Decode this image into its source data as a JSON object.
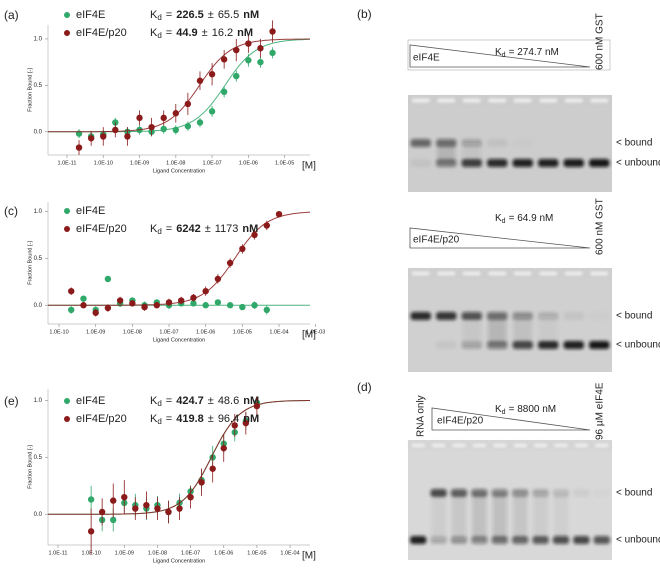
{
  "chart_data": [
    {
      "type": "scatter",
      "label": "(a)",
      "log_x": true,
      "grid": false,
      "x_label": "Ligand Concentration",
      "x_unit": "[M]",
      "y_label": "Fraction Bound [-]",
      "xlim": [
        3e-12,
        5e-05
      ],
      "ylim": [
        -0.25,
        1.15
      ],
      "xticks": [
        {
          "value": 1e-11,
          "label": "1.0E-11"
        },
        {
          "value": 1e-10,
          "label": "1.0E-10"
        },
        {
          "value": 1e-09,
          "label": "1.0E-09"
        },
        {
          "value": 1e-08,
          "label": "1.0E-08"
        },
        {
          "value": 1e-07,
          "label": "1.0E-07"
        },
        {
          "value": 1e-06,
          "label": "1.0E-06"
        },
        {
          "value": 1e-05,
          "label": "1.0E-05"
        }
      ],
      "yticks": [
        {
          "value": 0,
          "label": "0.0"
        },
        0.5,
        {
          "value": 1,
          "label": "1.0"
        }
      ],
      "x": [
        2.15e-11,
        4.64e-11,
        1e-10,
        2.15e-10,
        4.64e-10,
        1e-09,
        2.15e-09,
        4.64e-09,
        1e-08,
        2.15e-08,
        4.64e-08,
        1e-07,
        2.15e-07,
        4.64e-07,
        1e-06,
        2.15e-06,
        4.64e-06
      ],
      "series": [
        {
          "name": "eIF4E",
          "color": "#2fa86a",
          "kd": {
            "symbol": "K",
            "subscript": "d",
            "equals": "=",
            "value": 226.5,
            "plus_minus": "±",
            "error": 65.5,
            "unit": "nM"
          },
          "values": [
            -0.02,
            -0.05,
            -0.03,
            0.1,
            0.0,
            0.02,
            0.0,
            0.03,
            0.02,
            0.06,
            0.1,
            0.22,
            0.43,
            0.6,
            0.77,
            0.75,
            0.85
          ],
          "errors": [
            0.05,
            0.05,
            0.05,
            0.05,
            0.05,
            0.05,
            0.04,
            0.05,
            0.05,
            0.05,
            0.05,
            0.06,
            0.06,
            0.06,
            0.07,
            0.06,
            0.06
          ]
        },
        {
          "name": "eIF4E/p20",
          "color": "#8b1a1a",
          "kd": {
            "symbol": "K",
            "subscript": "d",
            "equals": "=",
            "value": 44.9,
            "plus_minus": "±",
            "error": 16.2,
            "unit": "nM"
          },
          "values": [
            -0.17,
            -0.07,
            -0.05,
            0.02,
            -0.05,
            0.15,
            0.05,
            0.15,
            0.2,
            0.3,
            0.55,
            0.62,
            0.78,
            0.88,
            0.95,
            0.9,
            1.08
          ],
          "errors": [
            0.08,
            0.08,
            0.1,
            0.08,
            0.1,
            0.08,
            0.1,
            0.08,
            0.1,
            0.12,
            0.1,
            0.12,
            0.1,
            0.12,
            0.1,
            0.1,
            0.12
          ]
        }
      ]
    },
    {
      "type": "scatter",
      "label": "(c)",
      "log_x": true,
      "grid": false,
      "x_label": "Ligand Concentration",
      "x_unit": "[M]",
      "y_label": "Fraction Bound [-]",
      "xlim": [
        5e-11,
        0.0007
      ],
      "ylim": [
        -0.2,
        1.1
      ],
      "xticks": [
        {
          "value": 1e-10,
          "label": "1.0E-10"
        },
        {
          "value": 1e-09,
          "label": "1.0E-09"
        },
        {
          "value": 1e-08,
          "label": "1.0E-08"
        },
        {
          "value": 1e-07,
          "label": "1.0E-07"
        },
        {
          "value": 1e-06,
          "label": "1.0E-06"
        },
        {
          "value": 1e-05,
          "label": "1.0E-05"
        },
        {
          "value": 0.0001,
          "label": "1.0E-04"
        },
        {
          "value": 0.001,
          "label": "1.0E-03"
        }
      ],
      "yticks": [
        {
          "value": 0,
          "label": "0.0"
        },
        0.5,
        {
          "value": 1,
          "label": "1.0"
        }
      ],
      "x": [
        2.15e-10,
        4.64e-10,
        1e-09,
        2.15e-09,
        4.64e-09,
        1e-08,
        2.15e-08,
        4.64e-08,
        1e-07,
        2.15e-07,
        4.64e-07,
        1e-06,
        2.15e-06,
        4.64e-06,
        1e-05,
        2.15e-05,
        4.64e-05,
        0.0001
      ],
      "series": [
        {
          "name": "eIF4E",
          "color": "#2fa86a",
          "values": [
            -0.05,
            0.07,
            -0.05,
            0.28,
            0.02,
            0.05,
            0.0,
            0.03,
            0.0,
            0.02,
            0.02,
            0.0,
            0.03,
            0.0,
            -0.02,
            0.0,
            -0.05,
            null
          ],
          "errors": [
            0.04,
            0.03,
            0.04,
            0.03,
            0.04,
            0.03,
            0.04,
            0.03,
            0.04,
            0.03,
            0.03,
            0.03,
            0.03,
            0.03,
            0.03,
            0.04,
            0.05,
            null
          ]
        },
        {
          "name": "eIF4E/p20",
          "color": "#8b1a1a",
          "kd": {
            "symbol": "K",
            "subscript": "d",
            "equals": "=",
            "value": 6242,
            "plus_minus": "±",
            "error": 1173,
            "unit": "nM"
          },
          "values": [
            0.15,
            0.0,
            -0.08,
            -0.03,
            0.05,
            0.02,
            -0.02,
            0.0,
            0.03,
            0.05,
            0.08,
            0.15,
            0.28,
            0.45,
            0.6,
            0.75,
            0.85,
            0.97
          ],
          "errors": [
            0.04,
            0.03,
            0.04,
            0.04,
            0.04,
            0.03,
            0.04,
            0.03,
            0.04,
            0.04,
            0.04,
            0.05,
            0.05,
            0.05,
            0.05,
            0.05,
            0.05,
            0.03
          ]
        }
      ]
    },
    {
      "type": "scatter",
      "label": "(e)",
      "log_x": true,
      "grid": false,
      "x_label": "Ligand Concentration",
      "x_unit": "[M]",
      "y_label": "Fraction Bound [-]",
      "xlim": [
        5e-12,
        0.0004
      ],
      "ylim": [
        -0.27,
        1.1
      ],
      "xticks": [
        {
          "value": 1e-11,
          "label": "1.0E-11"
        },
        {
          "value": 1e-10,
          "label": "1.0E-10"
        },
        {
          "value": 1e-09,
          "label": "1.0E-09"
        },
        {
          "value": 1e-08,
          "label": "1.0E-08"
        },
        {
          "value": 1e-07,
          "label": "1.0E-07"
        },
        {
          "value": 1e-06,
          "label": "1.0E-06"
        },
        {
          "value": 1e-05,
          "label": "1.0E-05"
        },
        {
          "value": 0.0001,
          "label": "1.0E-04"
        }
      ],
      "yticks": [
        {
          "value": 0,
          "label": "0.0"
        },
        0.5,
        {
          "value": 1,
          "label": "1.0"
        }
      ],
      "x": [
        1e-10,
        2.15e-10,
        4.64e-10,
        1e-09,
        2.15e-09,
        4.64e-09,
        1e-08,
        2.15e-08,
        4.64e-08,
        1e-07,
        2.15e-07,
        4.64e-07,
        1e-06,
        2.15e-06,
        4.64e-06,
        1e-05
      ],
      "series": [
        {
          "name": "eIF4E",
          "color": "#2fa86a",
          "kd": {
            "symbol": "K",
            "subscript": "d",
            "equals": "=",
            "value": 424.7,
            "plus_minus": "±",
            "error": 48.6,
            "unit": "nM"
          },
          "values": [
            0.13,
            -0.05,
            -0.05,
            0.1,
            0.08,
            0.05,
            0.08,
            0.02,
            0.1,
            0.2,
            0.3,
            0.5,
            0.62,
            0.72,
            0.82,
            0.98
          ],
          "errors": [
            0.12,
            0.1,
            0.1,
            0.08,
            0.1,
            0.1,
            0.08,
            0.1,
            0.08,
            0.05,
            0.1,
            0.1,
            0.08,
            0.08,
            0.08,
            0.05
          ]
        },
        {
          "name": "eIF4E/p20",
          "color": "#8b1a1a",
          "kd": {
            "symbol": "K",
            "subscript": "d",
            "equals": "=",
            "value": 419.8,
            "plus_minus": "±",
            "error": 96.4,
            "unit": "nM"
          },
          "values": [
            -0.15,
            0.02,
            0.12,
            0.15,
            0.05,
            0.08,
            0.05,
            0.02,
            0.05,
            0.15,
            0.28,
            0.4,
            0.58,
            0.78,
            0.8,
            0.95
          ],
          "errors": [
            0.2,
            0.12,
            0.15,
            0.15,
            0.1,
            0.12,
            0.1,
            0.1,
            0.1,
            0.1,
            0.12,
            0.12,
            0.12,
            0.1,
            0.1,
            0.08
          ]
        }
      ]
    }
  ],
  "gels": [
    {
      "label": "(b)",
      "lanes_label": "eIF4E",
      "kd": {
        "symbol": "K",
        "subscript": "d",
        "text": "= 274.7 nM"
      },
      "control": "600 nM GST",
      "bound": "< bound",
      "unbound": "< unbound"
    },
    {
      "lanes_label": "eIF4E/p20",
      "kd": {
        "symbol": "K",
        "subscript": "d",
        "text": "= 64.9 nM"
      },
      "control": "600 nM GST",
      "bound": "< bound",
      "unbound": "< unbound"
    },
    {
      "label": "(d)",
      "first_lane": "RNA only",
      "lanes_label": "eIF4E/p20",
      "kd": {
        "symbol": "K",
        "subscript": "d",
        "text": "= 8800 nM"
      },
      "control": "96 µM eIF4E",
      "bound": "< bound",
      "unbound": "< unbound"
    }
  ]
}
